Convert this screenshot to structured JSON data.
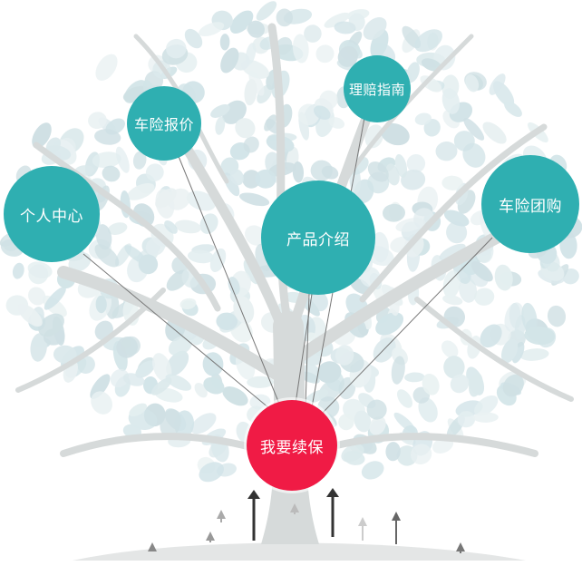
{
  "nodes": {
    "personal_center": "个人中心",
    "car_quote": "车险报价",
    "claims_guide": "理赔指南",
    "product_intro": "产品介绍",
    "group_buy": "车险团购",
    "renew": "我要续保"
  },
  "colors": {
    "teal": "#2fafb1",
    "red": "#f01b45",
    "leaf": "#dbe9ec",
    "trunk": "#d6dada",
    "line": "#777777"
  },
  "icons": [
    "tree-illustration",
    "arrow-up-icon",
    "connector-line"
  ]
}
